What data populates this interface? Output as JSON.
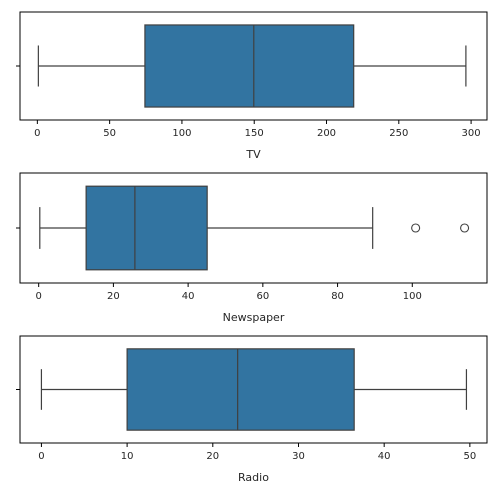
{
  "chart_data": [
    {
      "type": "box",
      "xlabel": "TV",
      "xlim": [
        -12,
        311
      ],
      "xticks": [
        0,
        50,
        100,
        150,
        200,
        250,
        300
      ],
      "stats": {
        "whislo": 0.7,
        "q1": 74.4,
        "median": 149.7,
        "q3": 218.8,
        "whishi": 296.4,
        "fliers": []
      },
      "color": "#3274a1"
    },
    {
      "type": "box",
      "xlabel": "Newspaper",
      "xlim": [
        -5,
        120
      ],
      "xticks": [
        0,
        20,
        40,
        60,
        80,
        100
      ],
      "stats": {
        "whislo": 0.3,
        "q1": 12.7,
        "median": 25.75,
        "q3": 45.1,
        "whishi": 89.4,
        "fliers": [
          100.9,
          114.0
        ]
      },
      "color": "#3274a1"
    },
    {
      "type": "box",
      "xlabel": "Radio",
      "xlim": [
        -2.5,
        52
      ],
      "xticks": [
        0,
        10,
        20,
        30,
        40,
        50
      ],
      "stats": {
        "whislo": 0.0,
        "q1": 10.0,
        "median": 22.9,
        "q3": 36.5,
        "whishi": 49.6,
        "fliers": []
      },
      "color": "#3274a1"
    }
  ]
}
